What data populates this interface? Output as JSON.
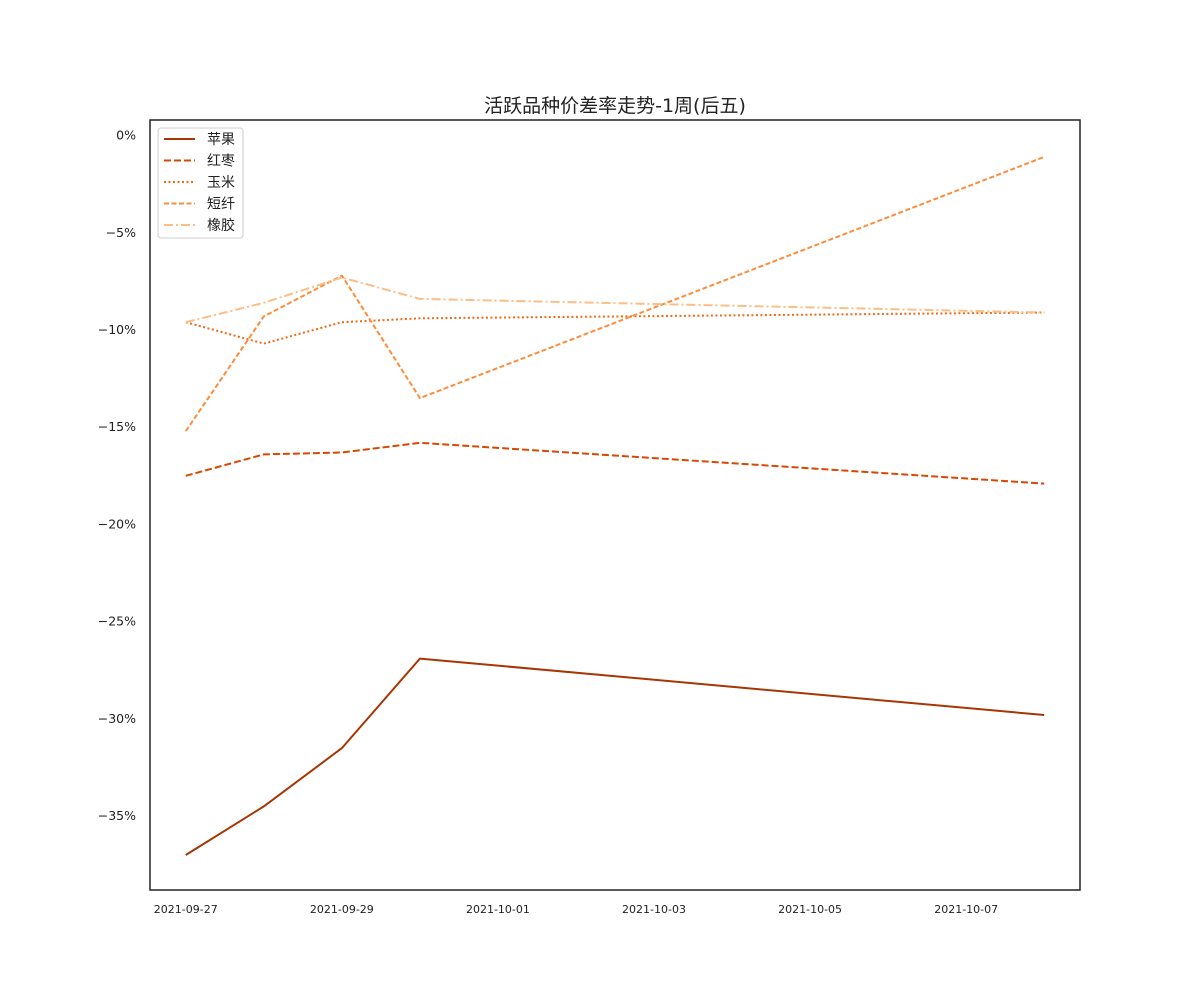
{
  "chart_data": {
    "type": "line",
    "title": "活跃品种价差率走势-1周(后五)",
    "xlabel": "",
    "ylabel": "",
    "x": [
      "2021-09-27",
      "2021-09-28",
      "2021-09-29",
      "2021-09-30",
      "2021-10-08"
    ],
    "x_ticks": [
      "2021-09-27",
      "2021-09-29",
      "2021-10-01",
      "2021-10-03",
      "2021-10-05",
      "2021-10-07"
    ],
    "y_ticks": [
      0,
      -5,
      -10,
      -15,
      -20,
      -25,
      -30,
      -35
    ],
    "y_tick_labels": [
      "0%",
      "−5%",
      "−10%",
      "−15%",
      "−20%",
      "−25%",
      "−30%",
      "−35%"
    ],
    "xlim": [
      "2021-09-26 13:00",
      "2021-10-08 11:00"
    ],
    "ylim": [
      -38.8,
      0.8
    ],
    "grid": false,
    "legend_position": "upper-left",
    "series": [
      {
        "name": "苹果",
        "color": "#a63603",
        "style": "solid",
        "values": [
          -37.0,
          -34.5,
          -31.5,
          -26.9,
          -29.8
        ]
      },
      {
        "name": "红枣",
        "color": "#d94801",
        "style": "dashed",
        "values": [
          -17.5,
          -16.4,
          -16.3,
          -15.8,
          -17.9
        ]
      },
      {
        "name": "玉米",
        "color": "#f16913",
        "style": "dotted",
        "values": [
          -9.6,
          -10.7,
          -9.6,
          -9.4,
          -9.1
        ]
      },
      {
        "name": "短纤",
        "color": "#fd8d3c",
        "style": "dashed2",
        "values": [
          -15.2,
          -9.3,
          -7.2,
          -13.5,
          -1.1
        ]
      },
      {
        "name": "橡胶",
        "color": "#fdbe85",
        "style": "dashdot",
        "values": [
          -9.6,
          -8.6,
          -7.3,
          -8.4,
          -9.1
        ]
      }
    ]
  }
}
